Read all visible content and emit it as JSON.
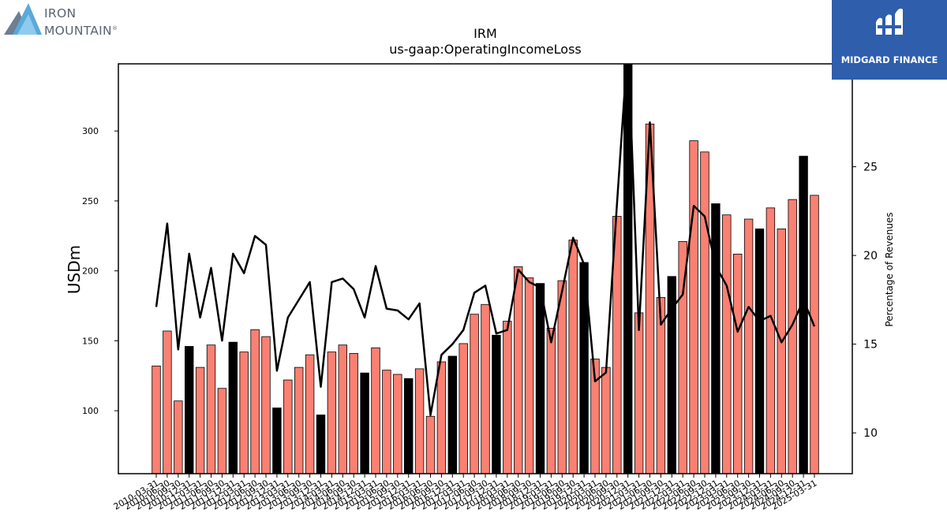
{
  "logos": {
    "left": {
      "line1": "IRON",
      "line2": "MOUNTAIN",
      "mark": "®"
    },
    "right": {
      "name": "MIDGARD FINANCE"
    }
  },
  "colors": {
    "bar": "#fa8072",
    "bar_q4": "#000000",
    "line": "#000000",
    "axis": "#000000"
  },
  "chart_data": {
    "type": "bar",
    "title": "IRM",
    "subtitle": "us-gaap:OperatingIncomeLoss",
    "ylabel": "USDm",
    "y2label": "Percentage of Revenues",
    "ylim": [
      55,
      348
    ],
    "y2lim": [
      7.7,
      30.8
    ],
    "yticks": [
      100,
      150,
      200,
      250,
      300
    ],
    "y2ticks": [
      10,
      15,
      20,
      25
    ],
    "categories": [
      "2010-03-31",
      "2010-06-30",
      "2010-09-30",
      "2010-12-31",
      "2011-03-31",
      "2011-06-30",
      "2011-09-30",
      "2011-12-31",
      "2012-03-31",
      "2012-06-30",
      "2012-09-30",
      "2012-12-31",
      "2013-03-31",
      "2013-06-30",
      "2013-09-30",
      "2013-12-31",
      "2014-03-31",
      "2014-06-30",
      "2014-09-30",
      "2014-12-31",
      "2015-03-31",
      "2015-06-30",
      "2015-09-30",
      "2015-12-31",
      "2016-03-31",
      "2016-06-30",
      "2016-09-30",
      "2016-12-31",
      "2017-03-31",
      "2017-06-30",
      "2017-09-30",
      "2017-12-31",
      "2018-03-31",
      "2018-06-30",
      "2018-09-30",
      "2018-12-31",
      "2019-03-31",
      "2019-06-30",
      "2019-09-30",
      "2019-12-31",
      "2020-03-31",
      "2020-06-30",
      "2020-09-30",
      "2020-12-31",
      "2021-03-31",
      "2021-06-30",
      "2021-09-30",
      "2021-12-31",
      "2022-03-31",
      "2022-06-30",
      "2022-09-30",
      "2022-12-31",
      "2023-03-31",
      "2023-06-30",
      "2023-09-30",
      "2023-12-31",
      "2024-03-31",
      "2024-06-30",
      "2024-09-30",
      "2024-12-31",
      "2025-03-31"
    ],
    "series": [
      {
        "type": "bar",
        "values": [
          132,
          157,
          107,
          146,
          131,
          147,
          116,
          149,
          142,
          158,
          153,
          102,
          122,
          131,
          140,
          97,
          142,
          147,
          141,
          127,
          145,
          129,
          126,
          123,
          130,
          96,
          135,
          139,
          148,
          169,
          176,
          154,
          164,
          203,
          195,
          191,
          159,
          193,
          222,
          206,
          137,
          131,
          239,
          348,
          170,
          305,
          181,
          196,
          221,
          293,
          285,
          248,
          240,
          212,
          237,
          230,
          245,
          230,
          251,
          282,
          254
        ]
      },
      {
        "type": "line",
        "values": [
          17.1,
          21.8,
          14.7,
          20.1,
          16.5,
          19.3,
          15.2,
          20.1,
          19.0,
          21.1,
          20.6,
          13.5,
          16.5,
          17.5,
          18.5,
          12.6,
          18.5,
          18.7,
          18.1,
          16.5,
          19.4,
          17.0,
          16.9,
          16.4,
          17.3,
          11.0,
          14.4,
          15.0,
          15.8,
          17.9,
          18.3,
          15.6,
          15.8,
          19.2,
          18.5,
          18.2,
          15.1,
          18.0,
          21.0,
          19.5,
          12.9,
          13.4,
          22.9,
          32.0,
          15.8,
          27.5,
          16.1,
          17.0,
          17.8,
          22.8,
          22.2,
          19.4,
          18.3,
          15.7,
          17.1,
          16.3,
          16.6,
          15.1,
          16.1,
          17.5,
          16.0
        ]
      }
    ],
    "grid": false,
    "legend": "none"
  }
}
